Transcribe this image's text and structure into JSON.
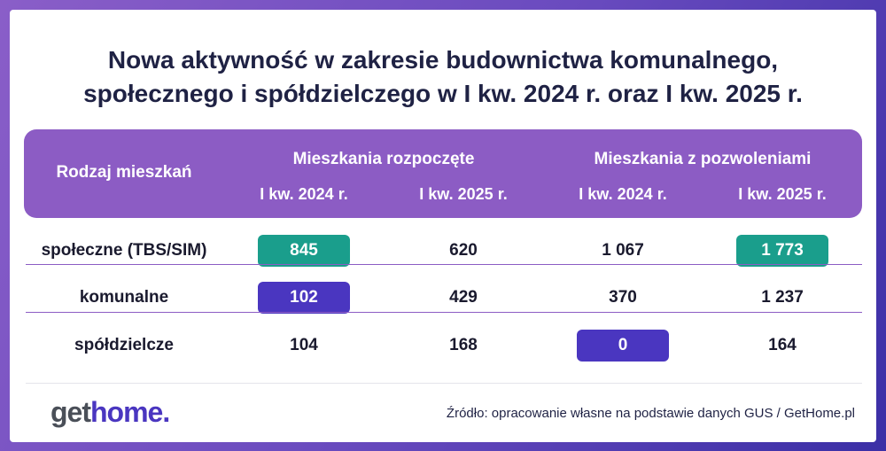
{
  "title_line1": "Nowa aktywność w zakresie budownictwa komunalnego,",
  "title_line2": "społecznego i spółdzielczego w I kw. 2024 r. oraz I kw. 2025 r.",
  "chart_data": {
    "type": "table",
    "columns": {
      "label_header": "Rodzaj mieszkań",
      "groups": [
        {
          "name": "Mieszkania rozpoczęte",
          "sub": [
            "I kw. 2024 r.",
            "I kw. 2025 r."
          ]
        },
        {
          "name": "Mieszkania z pozwoleniami",
          "sub": [
            "I kw. 2024 r.",
            "I kw. 2025 r."
          ]
        }
      ]
    },
    "rows": [
      {
        "label": "społeczne (TBS/SIM)",
        "values": [
          "845",
          "620",
          "1 067",
          "1 773"
        ]
      },
      {
        "label": "komunalne",
        "values": [
          "102",
          "429",
          "370",
          "1 237"
        ]
      },
      {
        "label": "spółdzielcze",
        "values": [
          "104",
          "168",
          "0",
          "164"
        ]
      }
    ],
    "numeric_values": [
      [
        845,
        620,
        1067,
        1773
      ],
      [
        102,
        429,
        370,
        1237
      ],
      [
        104,
        168,
        0,
        164
      ]
    ]
  },
  "colors": {
    "header": "#8c5cc4",
    "highlight_green": "#1a9e8c",
    "highlight_indigo": "#4a36c0"
  },
  "logo": {
    "part1": "get",
    "part2": "home."
  },
  "source": "Źródło: opracowanie własne na podstawie danych GUS / GetHome.pl"
}
